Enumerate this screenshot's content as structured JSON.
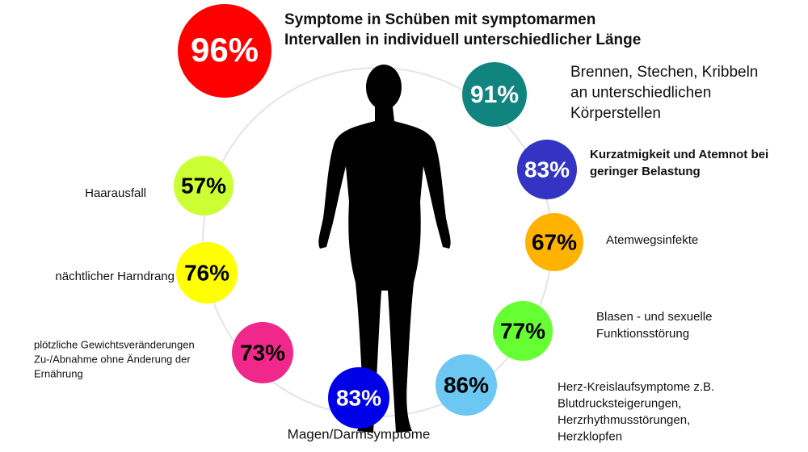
{
  "items": [
    {
      "percent": "96%",
      "color": "#ff0000",
      "text_color": "#ffffff",
      "lines": [
        "Symptome in Schüben mit symptomarmen",
        "Intervallen in individuell unterschiedlicher Länge"
      ]
    },
    {
      "percent": "91%",
      "color": "#12847f",
      "text_color": "#ffffff",
      "lines": [
        "Brennen, Stechen, Kribbeln",
        "an unterschiedlichen",
        "Körperstellen"
      ]
    },
    {
      "percent": "83%",
      "color": "#3333c4",
      "text_color": "#ffffff",
      "lines": [
        "Kurzatmigkeit und Atemnot bei",
        "geringer Belastung"
      ]
    },
    {
      "percent": "67%",
      "color": "#ffb300",
      "text_color": "#000000",
      "lines": [
        "Atemwegsinfekte"
      ]
    },
    {
      "percent": "77%",
      "color": "#66ff33",
      "text_color": "#000000",
      "lines": [
        "Blasen - und sexuelle",
        "Funktionsstörung"
      ]
    },
    {
      "percent": "86%",
      "color": "#6cc8f2",
      "text_color": "#000000",
      "lines": [
        "Herz-Kreislaufsymptome z.B.",
        "Blutdrucksteigerungen,",
        "Herzrhythmusstörungen,",
        "Herzklopfen"
      ]
    },
    {
      "percent": "83%",
      "color": "#0000e8",
      "text_color": "#ffffff",
      "lines": [
        "Magen/Darmsymptome"
      ]
    },
    {
      "percent": "73%",
      "color": "#f0288c",
      "text_color": "#000000",
      "lines": [
        "plötzliche Gewichtsveränderungen",
        "Zu-/Abnahme ohne Änderung der",
        "Ernährung"
      ]
    },
    {
      "percent": "76%",
      "color": "#ffff00",
      "text_color": "#000000",
      "lines": [
        "nächtlicher Harndrang"
      ]
    },
    {
      "percent": "57%",
      "color": "#ccff33",
      "text_color": "#000000",
      "lines": [
        "Haarausfall"
      ]
    }
  ]
}
